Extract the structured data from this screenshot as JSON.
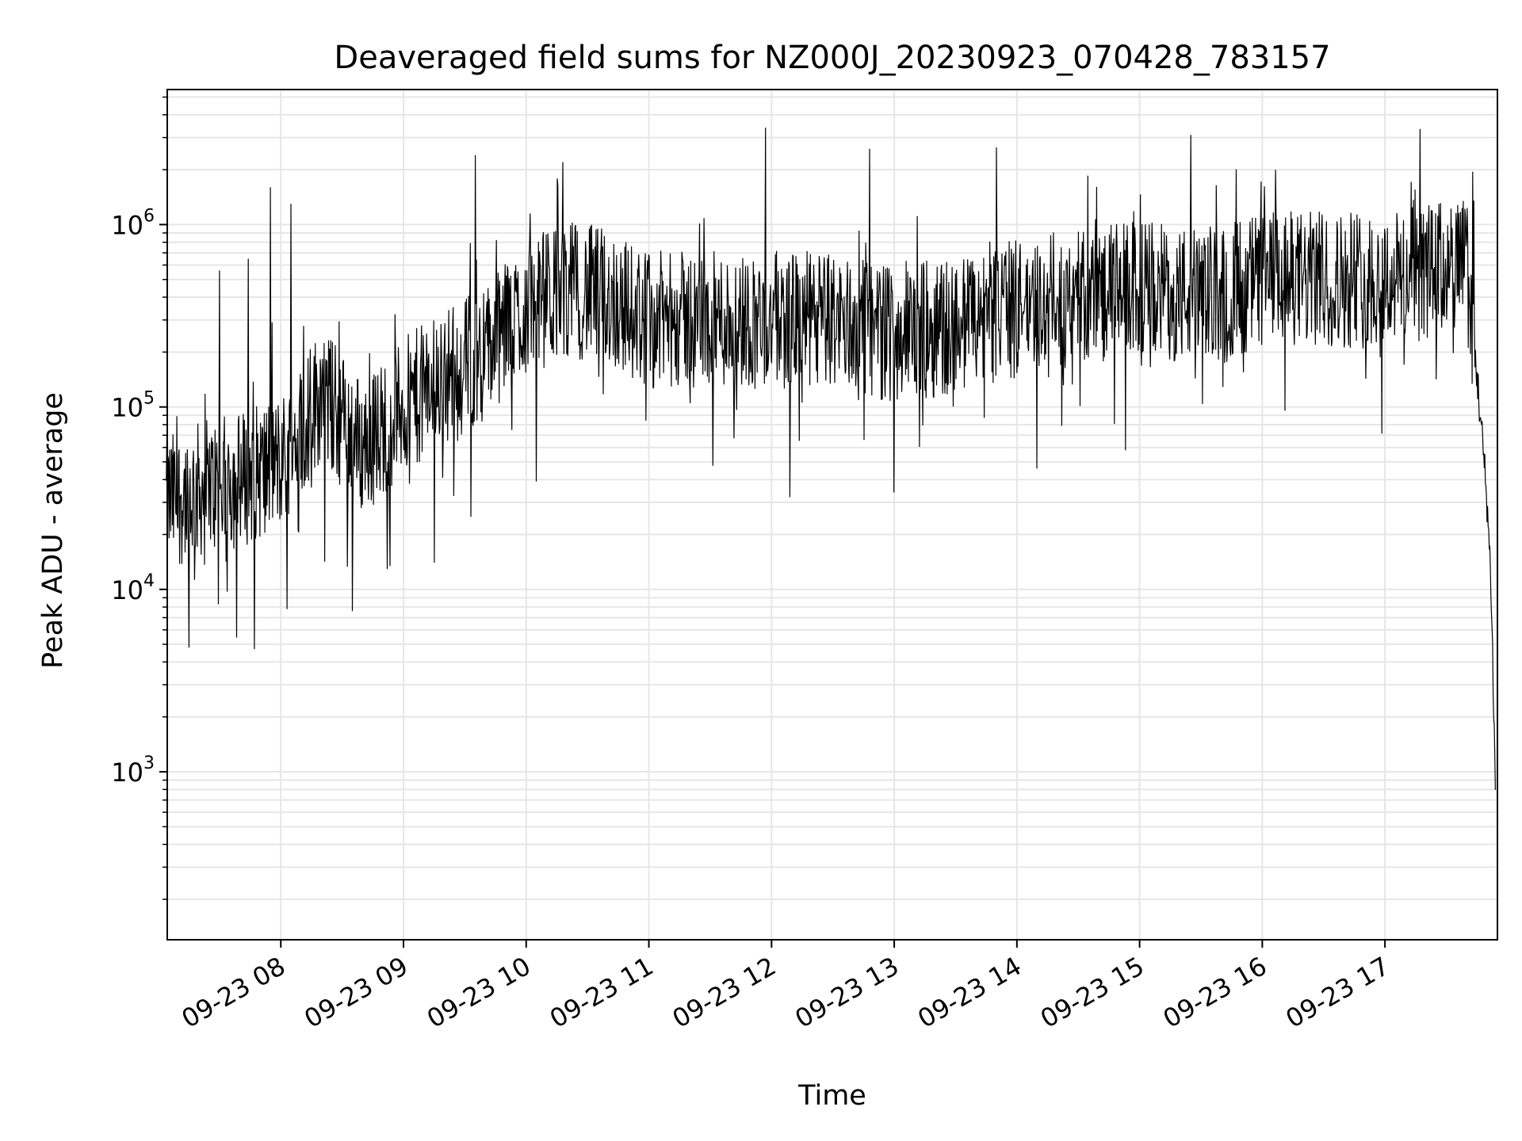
{
  "chart_data": {
    "type": "line",
    "title": "Deaveraged field sums for NZ000J_20230923_070428_783157",
    "xlabel": "Time",
    "ylabel": "Peak ADU - average",
    "yscale": "log",
    "ylim": [
      120,
      5500000
    ],
    "xlim": [
      "2023-09-23 07:04:28",
      "2023-09-23 17:55:00"
    ],
    "grid": true,
    "series_color": "#000000",
    "grid_color": "#e6e6e6",
    "x_ticks": [
      "09-23 08",
      "09-23 09",
      "09-23 10",
      "09-23 11",
      "09-23 12",
      "09-23 13",
      "09-23 14",
      "09-23 15",
      "09-23 16",
      "09-23 17"
    ],
    "y_ticks": [
      {
        "base": "10",
        "exp": "3",
        "value": 1000
      },
      {
        "base": "10",
        "exp": "4",
        "value": 10000
      },
      {
        "base": "10",
        "exp": "5",
        "value": 100000
      },
      {
        "base": "10",
        "exp": "6",
        "value": 1000000
      }
    ],
    "series": [
      {
        "x": [
          "2023-09-23 07:04",
          "2023-09-23 07:20",
          "2023-09-23 07:40",
          "2023-09-23 08:00",
          "2023-09-23 08:20",
          "2023-09-23 08:40",
          "2023-09-23 09:00",
          "2023-09-23 09:20",
          "2023-09-23 09:40",
          "2023-09-23 10:00",
          "2023-09-23 10:20",
          "2023-09-23 10:40",
          "2023-09-23 11:00",
          "2023-09-23 11:30",
          "2023-09-23 12:00",
          "2023-09-23 12:30",
          "2023-09-23 13:00",
          "2023-09-23 13:30",
          "2023-09-23 14:00",
          "2023-09-23 14:30",
          "2023-09-23 15:00",
          "2023-09-23 15:30",
          "2023-09-23 16:00",
          "2023-09-23 16:30",
          "2023-09-23 17:00",
          "2023-09-23 17:20",
          "2023-09-23 17:40",
          "2023-09-23 17:45",
          "2023-09-23 17:50",
          "2023-09-23 17:52",
          "2023-09-23 17:54"
        ],
        "y": [
          30000,
          35000,
          40000,
          50000,
          120000,
          60000,
          100000,
          150000,
          200000,
          350000,
          450000,
          400000,
          300000,
          300000,
          300000,
          300000,
          250000,
          280000,
          350000,
          400000,
          450000,
          400000,
          500000,
          500000,
          500000,
          550000,
          600000,
          150000,
          30000,
          10000,
          800
        ]
      }
    ],
    "peaks": [
      {
        "x": "2023-09-23 11:57",
        "y": 3400000
      },
      {
        "x": "2023-09-23 15:25",
        "y": 3100000
      },
      {
        "x": "2023-09-23 12:48",
        "y": 2600000
      },
      {
        "x": "2023-09-23 13:50",
        "y": 2650000
      },
      {
        "x": "2023-09-23 09:35",
        "y": 2400000
      },
      {
        "x": "2023-09-23 07:55",
        "y": 1600000
      },
      {
        "x": "2023-09-23 07:44",
        "y": 650000
      },
      {
        "x": "2023-09-23 07:30",
        "y": 560000
      },
      {
        "x": "2023-09-23 08:05",
        "y": 1300000
      },
      {
        "x": "2023-09-23 17:43",
        "y": 1950000
      },
      {
        "x": "2023-09-23 10:18",
        "y": 2200000
      }
    ],
    "troughs": [
      {
        "x": "2023-09-23 07:15",
        "y": 4800
      },
      {
        "x": "2023-09-23 07:47",
        "y": 4700
      },
      {
        "x": "2023-09-23 08:03",
        "y": 7800
      },
      {
        "x": "2023-09-23 08:35",
        "y": 7600
      },
      {
        "x": "2023-09-23 09:15",
        "y": 14000
      },
      {
        "x": "2023-09-23 09:33",
        "y": 25000
      },
      {
        "x": "2023-09-23 10:05",
        "y": 39000
      },
      {
        "x": "2023-09-23 12:09",
        "y": 32000
      },
      {
        "x": "2023-09-23 13:00",
        "y": 34000
      }
    ]
  }
}
